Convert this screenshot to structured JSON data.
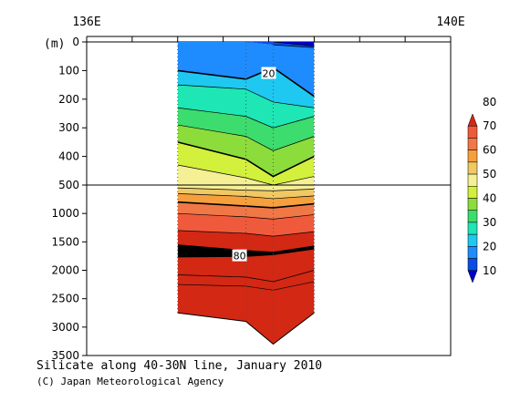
{
  "chart_data": {
    "type": "heatmap",
    "title": "Silicate along 40-30N line, January 2010",
    "credit": "(C) Japan Meteorological Agency",
    "x_ticks": [
      "136E",
      "140E"
    ],
    "y_unit": "(m)",
    "y_ticks_upper": [
      0,
      100,
      200,
      300,
      400,
      500
    ],
    "y_ticks_lower": [
      1000,
      1500,
      2000,
      2500,
      3000,
      3500
    ],
    "y_break_depth": 500,
    "x_range_deg": [
      136,
      140
    ],
    "section_x_deg": [
      137.0,
      137.75,
      138.05,
      138.5
    ],
    "bottom_depth": [
      2750,
      2900,
      3300,
      2750
    ],
    "contour_depths": [
      {
        "value": 10,
        "depths": [
          null,
          null,
          0,
          15
        ]
      },
      {
        "value": 15,
        "depths": [
          null,
          null,
          10,
          20
        ]
      },
      {
        "value": 20,
        "depths": [
          100,
          130,
          90,
          190
        ]
      },
      {
        "value": 25,
        "depths": [
          150,
          165,
          210,
          230
        ]
      },
      {
        "value": 30,
        "depths": [
          230,
          260,
          300,
          260
        ]
      },
      {
        "value": 35,
        "depths": [
          290,
          330,
          380,
          330
        ]
      },
      {
        "value": 40,
        "depths": [
          350,
          410,
          470,
          400
        ]
      },
      {
        "value": 45,
        "depths": [
          430,
          475,
          500,
          470
        ]
      },
      {
        "value": 50,
        "depths": [
          550,
          590,
          600,
          570
        ]
      },
      {
        "value": 55,
        "depths": [
          650,
          700,
          740,
          690
        ]
      },
      {
        "value": 60,
        "depths": [
          800,
          870,
          900,
          830
        ]
      },
      {
        "value": 65,
        "depths": [
          1000,
          1060,
          1100,
          1020
        ]
      },
      {
        "value": 70,
        "depths": [
          1300,
          1350,
          1400,
          1320
        ]
      },
      {
        "value": 75,
        "depths": [
          1550,
          1650,
          1680,
          1570
        ]
      },
      {
        "value": 80,
        "depths": [
          1760,
          1750,
          1720,
          1620
        ]
      },
      {
        "value": 82,
        "depths": [
          2080,
          2120,
          2200,
          2000
        ]
      },
      {
        "value": 84,
        "depths": [
          2250,
          2280,
          2350,
          2200
        ]
      }
    ],
    "contour_labels": [
      {
        "text": "20",
        "x_deg": 138.0,
        "depth": 110
      },
      {
        "text": "80",
        "x_deg": 137.68,
        "depth": 1745
      }
    ],
    "colorbar": {
      "levels": [
        10,
        20,
        30,
        40,
        50,
        60,
        70,
        80
      ],
      "colors": [
        "#0000cc",
        "#0a4de6",
        "#1e8cff",
        "#1ec8f0",
        "#1ee6b4",
        "#3cdc6e",
        "#8cdc3c",
        "#d2f03c",
        "#f5f096",
        "#f0c864",
        "#f5a03c",
        "#f07846",
        "#f05a3c",
        "#d22814"
      ]
    }
  }
}
